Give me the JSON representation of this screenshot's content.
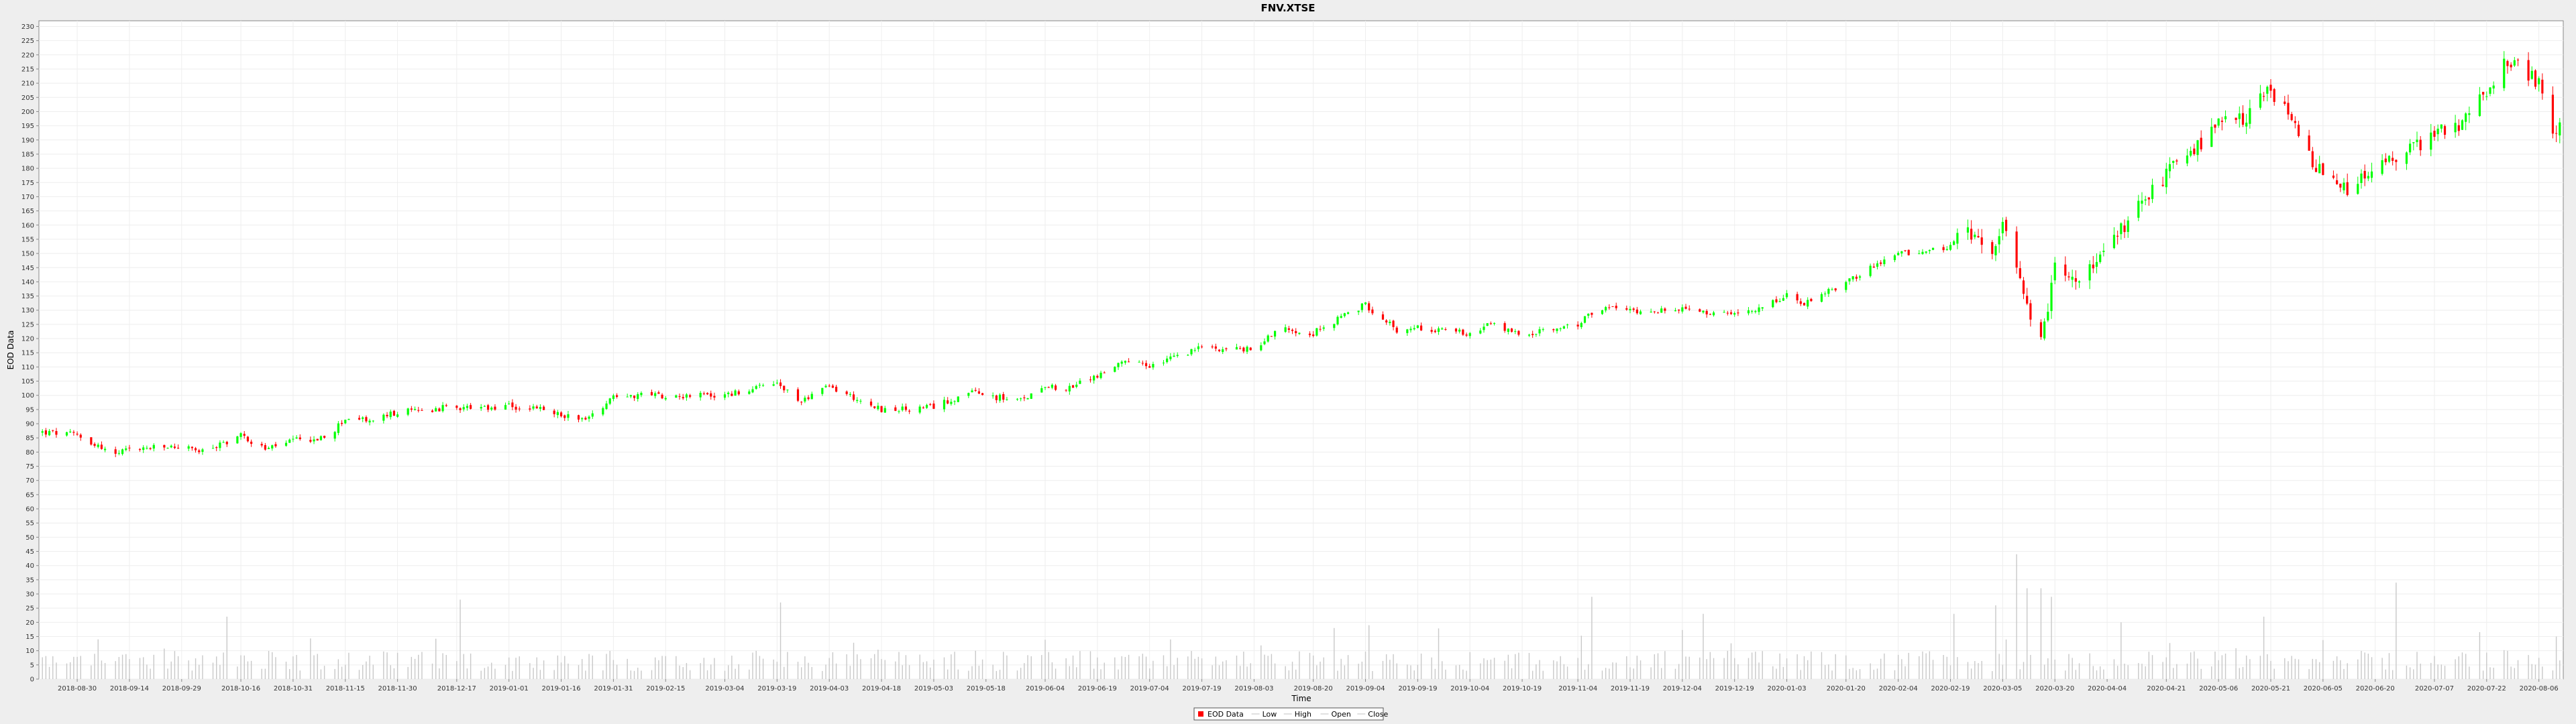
{
  "chart_data": {
    "type": "candlestick",
    "title": "FNV.XTSE",
    "xlabel": "Time",
    "ylabel": "EOD Data",
    "ylim": [
      0,
      232
    ],
    "yticks": [
      0,
      5,
      10,
      15,
      20,
      25,
      30,
      35,
      40,
      45,
      50,
      55,
      60,
      65,
      70,
      75,
      80,
      85,
      90,
      95,
      100,
      105,
      110,
      115,
      120,
      125,
      130,
      135,
      140,
      145,
      150,
      155,
      160,
      165,
      170,
      175,
      180,
      185,
      190,
      195,
      200,
      205,
      210,
      215,
      220,
      225,
      230
    ],
    "xlim": [
      "2018-08-19",
      "2020-08-13"
    ],
    "xticks": [
      "2018-08-30",
      "2018-09-14",
      "2018-09-29",
      "2018-10-16",
      "2018-10-31",
      "2018-11-15",
      "2018-11-30",
      "2018-12-17",
      "2019-01-01",
      "2019-01-16",
      "2019-01-31",
      "2019-02-15",
      "2019-03-04",
      "2019-03-19",
      "2019-04-03",
      "2019-04-18",
      "2019-05-03",
      "2019-05-18",
      "2019-06-04",
      "2019-06-19",
      "2019-07-04",
      "2019-07-19",
      "2019-08-03",
      "2019-08-20",
      "2019-09-04",
      "2019-09-19",
      "2019-10-04",
      "2019-10-19",
      "2019-11-04",
      "2019-11-19",
      "2019-12-04",
      "2019-12-19",
      "2020-01-03",
      "2020-01-20",
      "2020-02-04",
      "2020-02-19",
      "2020-03-05",
      "2020-03-20",
      "2020-04-04",
      "2020-04-21",
      "2020-05-06",
      "2020-05-21",
      "2020-06-05",
      "2020-06-20",
      "2020-07-07",
      "2020-07-22",
      "2020-08-06"
    ],
    "price_path": [
      [
        "2018-08-20",
        87
      ],
      [
        "2018-08-30",
        86
      ],
      [
        "2018-09-10",
        79
      ],
      [
        "2018-09-14",
        81
      ],
      [
        "2018-09-29",
        82
      ],
      [
        "2018-10-05",
        80
      ],
      [
        "2018-10-16",
        86
      ],
      [
        "2018-10-23",
        81
      ],
      [
        "2018-10-31",
        84
      ],
      [
        "2018-11-10",
        85
      ],
      [
        "2018-11-15",
        92
      ],
      [
        "2018-11-22",
        91
      ],
      [
        "2018-11-30",
        94
      ],
      [
        "2018-12-17",
        96
      ],
      [
        "2018-12-24",
        95
      ],
      [
        "2019-01-01",
        96
      ],
      [
        "2019-01-10",
        95
      ],
      [
        "2019-01-16",
        93
      ],
      [
        "2019-01-24",
        92
      ],
      [
        "2019-01-31",
        100
      ],
      [
        "2019-02-15",
        100
      ],
      [
        "2019-03-04",
        100
      ],
      [
        "2019-03-19",
        104
      ],
      [
        "2019-03-25",
        98
      ],
      [
        "2019-04-03",
        103
      ],
      [
        "2019-04-18",
        95
      ],
      [
        "2019-04-28",
        95
      ],
      [
        "2019-05-03",
        96
      ],
      [
        "2019-05-13",
        101
      ],
      [
        "2019-05-18",
        100
      ],
      [
        "2019-05-28",
        98
      ],
      [
        "2019-06-04",
        104
      ],
      [
        "2019-06-10",
        102
      ],
      [
        "2019-06-19",
        107
      ],
      [
        "2019-06-28",
        112
      ],
      [
        "2019-07-04",
        110
      ],
      [
        "2019-07-19",
        117
      ],
      [
        "2019-08-03",
        116
      ],
      [
        "2019-08-10",
        124
      ],
      [
        "2019-08-20",
        122
      ],
      [
        "2019-09-04",
        132
      ],
      [
        "2019-09-14",
        122
      ],
      [
        "2019-09-19",
        124
      ],
      [
        "2019-10-04",
        122
      ],
      [
        "2019-10-10",
        125
      ],
      [
        "2019-10-19",
        121
      ],
      [
        "2019-11-04",
        125
      ],
      [
        "2019-11-10",
        131
      ],
      [
        "2019-11-19",
        130
      ],
      [
        "2019-12-04",
        130
      ],
      [
        "2019-12-19",
        128
      ],
      [
        "2020-01-03",
        135
      ],
      [
        "2020-01-08",
        132
      ],
      [
        "2020-01-20",
        140
      ],
      [
        "2020-02-04",
        150
      ],
      [
        "2020-02-19",
        152
      ],
      [
        "2020-02-24",
        158
      ],
      [
        "2020-03-01",
        148
      ],
      [
        "2020-03-05",
        160
      ],
      [
        "2020-03-12",
        130
      ],
      [
        "2020-03-15",
        112
      ],
      [
        "2020-03-20",
        145
      ],
      [
        "2020-03-26",
        140
      ],
      [
        "2020-04-04",
        150
      ],
      [
        "2020-04-10",
        162
      ],
      [
        "2020-04-21",
        178
      ],
      [
        "2020-04-28",
        185
      ],
      [
        "2020-05-06",
        195
      ],
      [
        "2020-05-14",
        198
      ],
      [
        "2020-05-21",
        208
      ],
      [
        "2020-05-27",
        196
      ],
      [
        "2020-06-03",
        180
      ],
      [
        "2020-06-05",
        178
      ],
      [
        "2020-06-12",
        172
      ],
      [
        "2020-06-20",
        180
      ],
      [
        "2020-06-30",
        187
      ],
      [
        "2020-07-07",
        192
      ],
      [
        "2020-07-15",
        196
      ],
      [
        "2020-07-22",
        208
      ],
      [
        "2020-07-28",
        218
      ],
      [
        "2020-08-06",
        210
      ],
      [
        "2020-08-10",
        190
      ],
      [
        "2020-08-12",
        194
      ]
    ],
    "volume_spikes": [
      [
        "2018-09-05",
        14
      ],
      [
        "2018-10-12",
        22
      ],
      [
        "2018-12-18",
        28
      ],
      [
        "2019-03-20",
        27
      ],
      [
        "2019-06-22",
        23
      ],
      [
        "2019-08-26",
        18
      ],
      [
        "2019-09-05",
        19
      ],
      [
        "2019-11-08",
        29
      ],
      [
        "2019-12-10",
        23
      ],
      [
        "2020-02-20",
        23
      ],
      [
        "2020-03-03",
        26
      ],
      [
        "2020-03-09",
        44
      ],
      [
        "2020-03-12",
        32
      ],
      [
        "2020-03-16",
        32
      ],
      [
        "2020-03-19",
        29
      ],
      [
        "2020-04-08",
        20
      ],
      [
        "2020-05-19",
        22
      ],
      [
        "2020-06-26",
        34
      ],
      [
        "2020-08-11",
        15
      ]
    ],
    "volume_level": 8,
    "colors": {
      "up": "#00ff00",
      "down": "#ff0000",
      "volume": "#c8c8c8",
      "grid": "#eeeeee",
      "plot_bg": "#ffffff"
    },
    "legend": {
      "position": "bottom-center",
      "items": [
        {
          "label": "EOD Data",
          "color": "#ff0000",
          "kind": "box"
        },
        {
          "label": "Low",
          "color": "#c0c0c0",
          "kind": "line"
        },
        {
          "label": "High",
          "color": "#c0c0c0",
          "kind": "line"
        },
        {
          "label": "Open",
          "color": "#c0c0c0",
          "kind": "line"
        },
        {
          "label": "Close",
          "color": "#c0c0c0",
          "kind": "line"
        }
      ]
    }
  }
}
